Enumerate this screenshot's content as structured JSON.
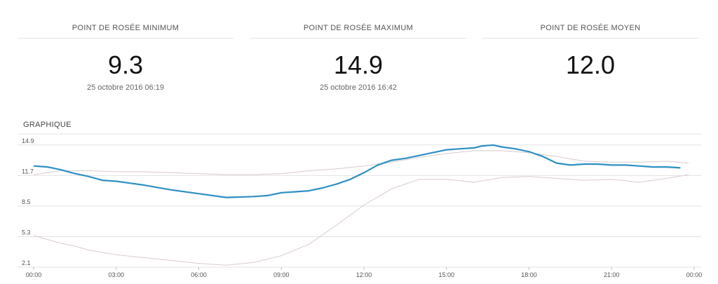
{
  "stats": {
    "min": {
      "label": "POINT DE ROSÉE MINIMUM",
      "value": "9.3",
      "date": "25 octobre 2016 06:19"
    },
    "max": {
      "label": "POINT DE ROSÉE MAXIMUM",
      "value": "14.9",
      "date": "25 octobre 2016 16:42"
    },
    "avg": {
      "label": "POINT DE ROSÉE MOYEN",
      "value": "12.0",
      "date": ""
    }
  },
  "graph_title": "GRAPHIQUE",
  "colors": {
    "main": "#2e8fc4",
    "upper": "#d9c9cc",
    "lower": "#d9c9cc",
    "grid": "#e3e3e3"
  },
  "chart_data": {
    "type": "line",
    "title": "",
    "xlabel": "",
    "ylabel": "",
    "ylim": [
      2.1,
      16.5
    ],
    "xlim": [
      0,
      24
    ],
    "y_ticks": [
      2.1,
      5.3,
      8.5,
      11.7,
      14.9
    ],
    "y_tick_labels": [
      "2.1",
      "5.3",
      "8.5",
      "11.7",
      "14.9"
    ],
    "x_ticks": [
      0,
      3,
      6,
      9,
      12,
      15,
      18,
      21,
      24
    ],
    "x_tick_labels": [
      "00:00",
      "03:00",
      "06:00",
      "09:00",
      "12:00",
      "15:00",
      "18:00",
      "21:00",
      "00:00"
    ],
    "grid": true,
    "series": [
      {
        "role": "main",
        "x": [
          0,
          0.5,
          1,
          1.5,
          2,
          2.5,
          3,
          3.5,
          4,
          5,
          6,
          7,
          8,
          8.5,
          9,
          9.5,
          10,
          10.5,
          11,
          11.5,
          12,
          12.5,
          13,
          13.5,
          14,
          14.5,
          15,
          15.5,
          16,
          16.3,
          16.7,
          17,
          17.5,
          18,
          18.5,
          19,
          19.5,
          20,
          20.5,
          21,
          21.5,
          22,
          22.5,
          23,
          23.5
        ],
        "y": [
          12.7,
          12.6,
          12.3,
          11.9,
          11.6,
          11.2,
          11.1,
          10.9,
          10.7,
          10.2,
          9.8,
          9.4,
          9.5,
          9.6,
          9.9,
          10.0,
          10.1,
          10.4,
          10.8,
          11.3,
          12.0,
          12.8,
          13.3,
          13.5,
          13.8,
          14.1,
          14.4,
          14.5,
          14.6,
          14.8,
          14.9,
          14.7,
          14.5,
          14.2,
          13.7,
          13.0,
          12.8,
          12.9,
          12.9,
          12.8,
          12.8,
          12.7,
          12.6,
          12.6,
          12.5
        ]
      },
      {
        "role": "upper",
        "x": [
          0,
          1,
          2,
          3,
          4,
          5,
          6,
          7,
          8,
          9,
          10,
          11,
          12,
          13,
          14,
          15,
          16,
          17,
          18,
          19,
          20,
          21,
          22,
          23,
          23.8
        ],
        "y": [
          11.8,
          12.2,
          12.2,
          12.1,
          12.1,
          12.0,
          11.9,
          11.8,
          11.8,
          11.9,
          12.2,
          12.4,
          12.7,
          13.1,
          13.6,
          14.0,
          14.3,
          14.3,
          14.1,
          13.7,
          13.2,
          13.1,
          13.1,
          13.2,
          13.0
        ]
      },
      {
        "role": "lower",
        "x": [
          0,
          0.5,
          1,
          1.5,
          2,
          3,
          4,
          5,
          6,
          7,
          8,
          9,
          10,
          11,
          12,
          13,
          14,
          15,
          16,
          17,
          18,
          19,
          20,
          21,
          22,
          23,
          23.8
        ],
        "y": [
          5.4,
          5.0,
          4.6,
          4.3,
          3.9,
          3.4,
          3.1,
          2.8,
          2.5,
          2.3,
          2.6,
          3.3,
          4.5,
          6.5,
          8.6,
          10.3,
          11.3,
          11.3,
          11.0,
          11.5,
          11.6,
          11.4,
          11.2,
          11.3,
          11.0,
          11.4,
          11.8
        ]
      }
    ]
  }
}
